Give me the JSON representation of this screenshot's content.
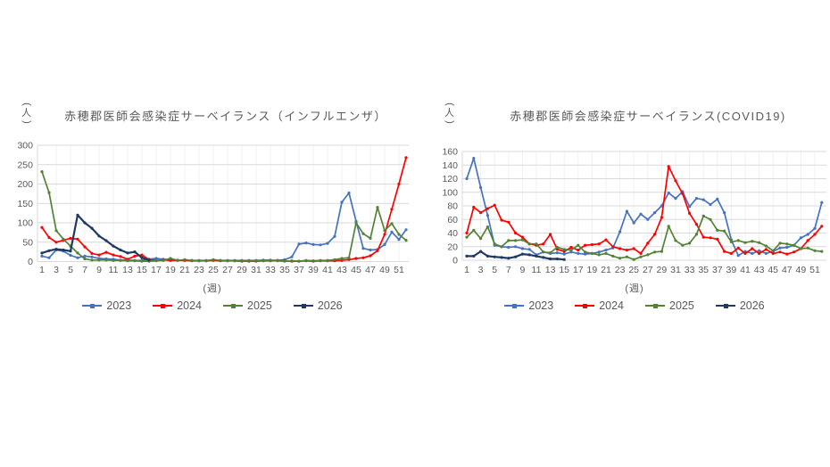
{
  "page": {
    "background": "#FFFFFF"
  },
  "style": {
    "text_color": "#595959",
    "gridline_color": "#D9D9D9",
    "minor_vertical_gridline_color": "#F1F1F1"
  },
  "chart_data": [
    {
      "type": "line",
      "title": "赤穂郡医師会感染症サーベイランス（インフルエンザ）",
      "y_unit_label": "(人)",
      "x_unit_label": "(週)",
      "ylim": [
        0,
        300
      ],
      "y_ticks": [
        0,
        50,
        100,
        150,
        200,
        250,
        300
      ],
      "x_weeks": 52,
      "x_tick_labels": [
        "1",
        "3",
        "5",
        "7",
        "9",
        "11",
        "13",
        "15",
        "17",
        "19",
        "21",
        "23",
        "25",
        "27",
        "29",
        "31",
        "33",
        "35",
        "37",
        "39",
        "41",
        "43",
        "45",
        "47",
        "49",
        "51"
      ],
      "grid": true,
      "legend_position": "bottom",
      "series": [
        {
          "name": "2023",
          "color": "#4472C4",
          "width": 1.7,
          "values": [
            14,
            10,
            30,
            27,
            16,
            10,
            14,
            12,
            8,
            7,
            6,
            4,
            4,
            3,
            3,
            6,
            8,
            6,
            5,
            4,
            3,
            3,
            3,
            3,
            4,
            3,
            3,
            3,
            3,
            3,
            3,
            4,
            4,
            3,
            5,
            12,
            45,
            48,
            44,
            43,
            47,
            65,
            153,
            177,
            104,
            34,
            30,
            31,
            44,
            76,
            57,
            82
          ]
        },
        {
          "name": "2024",
          "color": "#FF0000",
          "width": 1.7,
          "values": [
            88,
            62,
            50,
            55,
            60,
            58,
            38,
            21,
            17,
            24,
            17,
            13,
            6,
            14,
            17,
            5,
            3,
            4,
            3,
            3,
            3,
            2,
            2,
            2,
            3,
            2,
            2,
            2,
            1,
            1,
            1,
            2,
            2,
            3,
            2,
            1,
            1,
            2,
            1,
            2,
            2,
            2,
            3,
            5,
            8,
            10,
            15,
            28,
            70,
            135,
            200,
            268
          ]
        },
        {
          "name": "2025",
          "color": "#548235",
          "width": 1.7,
          "values": [
            232,
            178,
            80,
            58,
            40,
            22,
            7,
            4,
            4,
            4,
            3,
            3,
            2,
            2,
            1,
            1,
            2,
            3,
            8,
            3,
            5,
            3,
            2,
            2,
            5,
            3,
            2,
            2,
            1,
            1,
            2,
            2,
            3,
            2,
            1,
            2,
            1,
            3,
            2,
            3,
            3,
            5,
            8,
            10,
            100,
            72,
            60,
            140,
            80,
            98,
            70,
            55
          ]
        },
        {
          "name": "2026",
          "color": "#1F3864",
          "width": 2.2,
          "values": [
            22,
            28,
            32,
            30,
            27,
            120,
            100,
            86,
            66,
            54,
            40,
            30,
            22,
            25,
            10,
            4
          ]
        }
      ]
    },
    {
      "type": "line",
      "title": "赤穂郡医師会感染症サーベイランス(COVID19)",
      "y_unit_label": "(人)",
      "x_unit_label": "(週)",
      "ylim": [
        0,
        160
      ],
      "y_ticks": [
        0,
        20,
        40,
        60,
        80,
        100,
        120,
        140,
        160
      ],
      "x_weeks": 52,
      "x_tick_labels": [
        "1",
        "3",
        "5",
        "7",
        "9",
        "11",
        "13",
        "15",
        "17",
        "19",
        "21",
        "23",
        "25",
        "27",
        "29",
        "31",
        "33",
        "35",
        "37",
        "39",
        "41",
        "43",
        "45",
        "47",
        "49",
        "51"
      ],
      "grid": true,
      "legend_position": "bottom",
      "series": [
        {
          "name": "2023",
          "color": "#4472C4",
          "width": 1.7,
          "values": [
            120,
            150,
            107,
            66,
            22,
            20,
            19,
            20,
            17,
            16,
            8,
            12,
            10,
            11,
            9,
            12,
            10,
            9,
            10,
            12,
            15,
            18,
            42,
            72,
            55,
            68,
            60,
            70,
            80,
            99,
            91,
            101,
            79,
            91,
            89,
            82,
            90,
            70,
            30,
            7,
            13,
            10,
            14,
            10,
            13,
            18,
            19,
            22,
            33,
            38,
            47,
            85
          ]
        },
        {
          "name": "2024",
          "color": "#FF0000",
          "width": 1.7,
          "values": [
            40,
            78,
            70,
            76,
            81,
            59,
            56,
            40,
            34,
            24,
            22,
            24,
            38,
            16,
            13,
            19,
            15,
            22,
            23,
            24,
            30,
            20,
            17,
            15,
            17,
            10,
            25,
            38,
            63,
            138,
            117,
            98,
            69,
            53,
            34,
            33,
            31,
            13,
            10,
            18,
            10,
            17,
            10,
            16,
            10,
            12,
            9,
            12,
            17,
            29,
            38,
            50
          ]
        },
        {
          "name": "2025",
          "color": "#548235",
          "width": 1.7,
          "values": [
            34,
            44,
            32,
            49,
            24,
            20,
            29,
            29,
            30,
            24,
            24,
            12,
            11,
            19,
            16,
            15,
            22,
            12,
            10,
            8,
            10,
            6,
            3,
            5,
            1,
            5,
            8,
            12,
            13,
            50,
            29,
            22,
            25,
            38,
            65,
            60,
            44,
            43,
            27,
            29,
            26,
            28,
            26,
            21,
            14,
            25,
            24,
            22,
            17,
            18,
            14,
            13
          ]
        },
        {
          "name": "2026",
          "color": "#1F3864",
          "width": 2.2,
          "values": [
            6,
            6,
            13,
            6,
            5,
            4,
            3,
            5,
            9,
            8,
            6,
            4,
            2,
            2,
            1
          ]
        }
      ]
    }
  ]
}
